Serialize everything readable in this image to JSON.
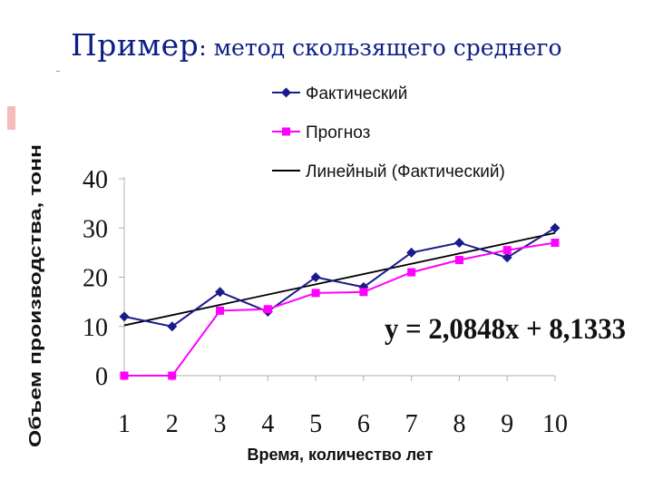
{
  "slide": {
    "title_main": "Пример",
    "title_rest": ": метод скользящего среднего"
  },
  "chart_data": {
    "type": "line",
    "x": [
      1,
      2,
      3,
      4,
      5,
      6,
      7,
      8,
      9,
      10
    ],
    "xlabel": "Время, количество лет",
    "ylabel": "Объем производства, тонн",
    "ylim": [
      0,
      40
    ],
    "yticks": [
      0,
      10,
      20,
      30,
      40
    ],
    "grid": false,
    "legend_position": "top",
    "series": [
      {
        "name": "Фактический",
        "color": "#1a1a8c",
        "marker": "diamond",
        "values": [
          12,
          10,
          17,
          13,
          20,
          18,
          25,
          27,
          24,
          30
        ]
      },
      {
        "name": "Прогноз",
        "color": "#ff00ff",
        "marker": "square",
        "values": [
          0,
          0,
          13.2,
          13.5,
          16.8,
          17,
          21,
          23.5,
          25.5,
          27
        ]
      },
      {
        "name": "Линейный (Фактический)",
        "color": "#000000",
        "marker": "none",
        "trend": {
          "slope": 2.0848,
          "intercept": 8.1333
        }
      }
    ],
    "annotation": "y = 2,0848x + 8,1333"
  }
}
